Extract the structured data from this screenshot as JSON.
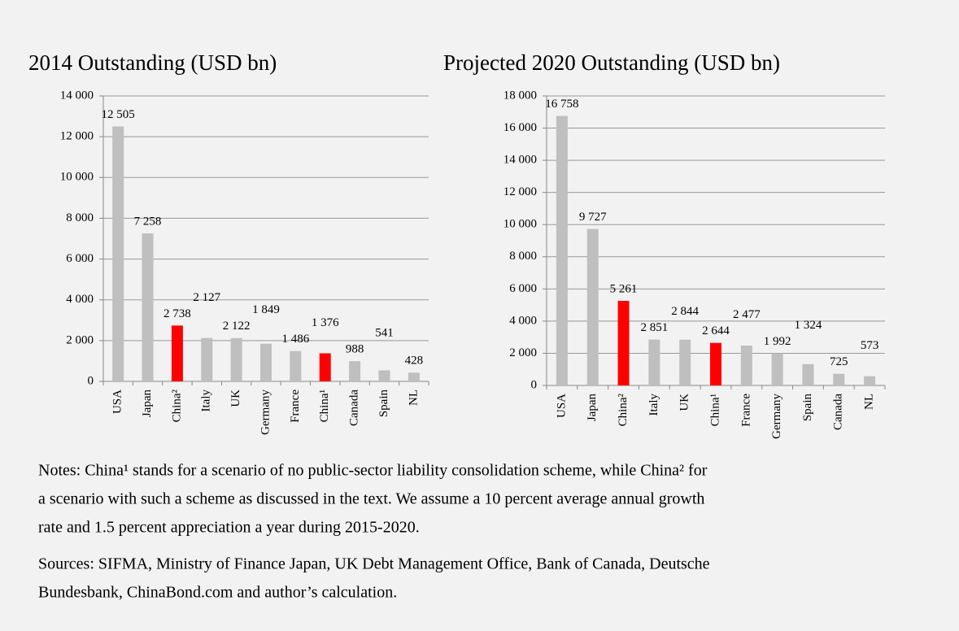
{
  "chart_data": [
    {
      "type": "bar",
      "title": "2014 Outstanding (USD bn)",
      "categories": [
        "USA",
        "Japan",
        "China²",
        "Italy",
        "UK",
        "Germany",
        "France",
        "China¹",
        "Canada",
        "Spain",
        "NL"
      ],
      "values": [
        12505,
        7258,
        2738,
        2127,
        2122,
        1849,
        1486,
        1376,
        988,
        541,
        428
      ],
      "value_labels": [
        "12 505",
        "7 258",
        "2 738",
        "2 127",
        "2 122",
        "1 849",
        "1 486",
        "1 376",
        "988",
        "541",
        "428"
      ],
      "colors": [
        "#bfbfbf",
        "#bfbfbf",
        "#ff0000",
        "#bfbfbf",
        "#bfbfbf",
        "#bfbfbf",
        "#bfbfbf",
        "#ff0000",
        "#bfbfbf",
        "#bfbfbf",
        "#bfbfbf"
      ],
      "ylim": [
        0,
        14000
      ],
      "yticks": [
        0,
        {
          "value": 2000,
          "label": "2 000"
        },
        {
          "value": 4000,
          "label": "4 000"
        },
        {
          "value": 6000,
          "label": "6 000"
        },
        {
          "value": 8000,
          "label": "8 000"
        },
        {
          "value": 10000,
          "label": "10 000"
        },
        {
          "value": 12000,
          "label": "12 000"
        },
        {
          "value": 14000,
          "label": "14 000"
        }
      ],
      "grid": true
    },
    {
      "type": "bar",
      "title": "Projected 2020 Outstanding (USD bn)",
      "categories": [
        "USA",
        "Japan",
        "China²",
        "Italy",
        "UK",
        "China¹",
        "France",
        "Germany",
        "Spain",
        "Canada",
        "NL"
      ],
      "values": [
        16758,
        9727,
        5261,
        2851,
        2844,
        2644,
        2477,
        1992,
        1324,
        725,
        573
      ],
      "value_labels": [
        "16 758",
        "9 727",
        "5 261",
        "2 851",
        "2 844",
        "2 644",
        "2 477",
        "1 992",
        "1 324",
        "725",
        "573"
      ],
      "colors": [
        "#bfbfbf",
        "#bfbfbf",
        "#ff0000",
        "#bfbfbf",
        "#bfbfbf",
        "#ff0000",
        "#bfbfbf",
        "#bfbfbf",
        "#bfbfbf",
        "#bfbfbf",
        "#bfbfbf"
      ],
      "ylim": [
        0,
        18000
      ],
      "yticks": [
        0,
        {
          "value": 2000,
          "label": "2 000"
        },
        {
          "value": 4000,
          "label": "4 000"
        },
        {
          "value": 6000,
          "label": "6 000"
        },
        {
          "value": 8000,
          "label": "8 000"
        },
        {
          "value": 10000,
          "label": "10 000"
        },
        {
          "value": 12000,
          "label": "12 000"
        },
        {
          "value": 14000,
          "label": "14 000"
        },
        {
          "value": 16000,
          "label": "16 000"
        },
        {
          "value": 18000,
          "label": "18 000"
        }
      ],
      "grid": true
    }
  ],
  "notes": [
    "Notes: China¹ stands for a scenario of no public-sector liability consolidation scheme, while China² for",
    "a scenario with such a scheme as discussed in the text.  We assume a 10 percent average annual growth",
    "rate and 1.5 percent appreciation a year during 2015-2020."
  ],
  "sources": [
    "Sources: SIFMA, Ministry of Finance Japan, UK Debt Management Office, Bank of Canada, Deutsche",
    "Bundesbank, ChinaBond.com and author’s calculation."
  ]
}
